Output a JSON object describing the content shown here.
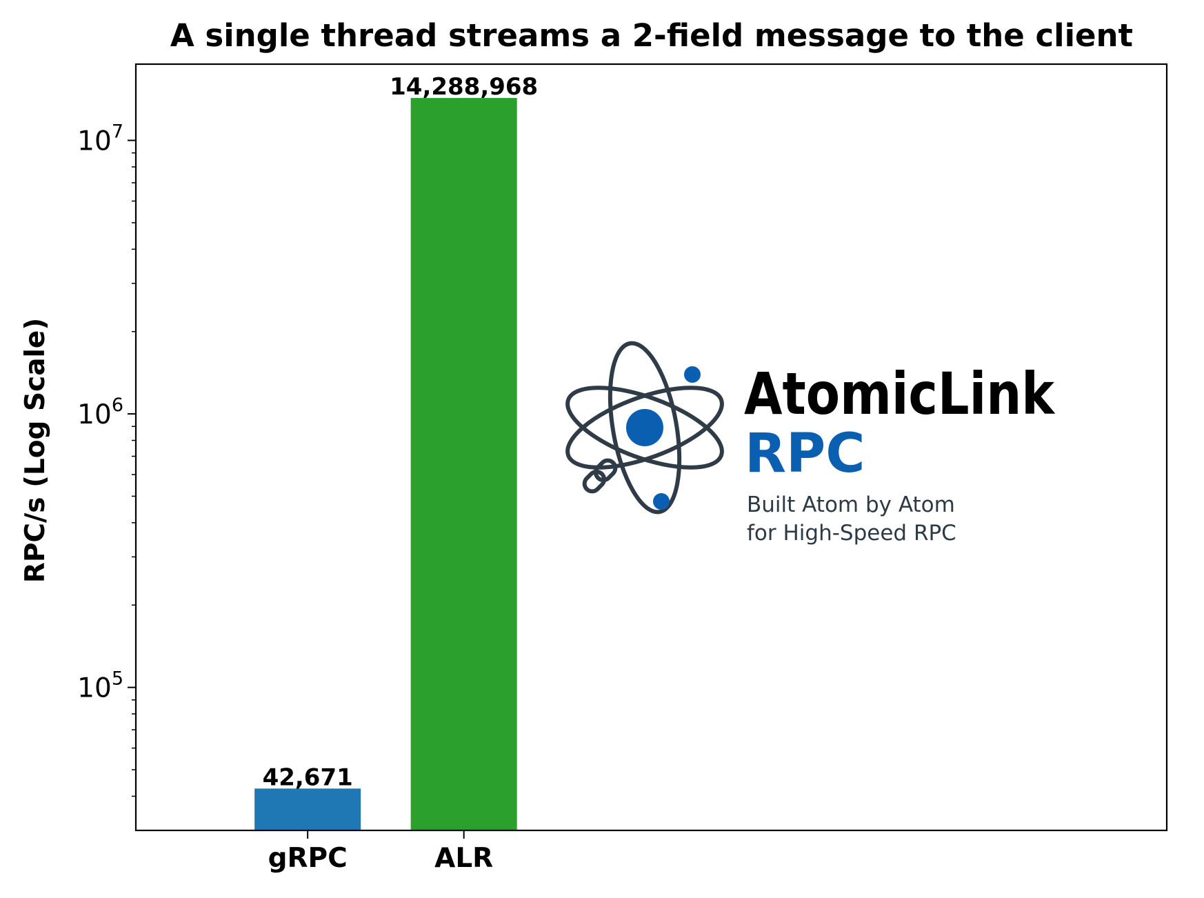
{
  "chart_data": {
    "type": "bar",
    "title": "A single thread streams a 2-field message to the client",
    "xlabel": "",
    "ylabel": "RPC/s (Log Scale)",
    "yscale": "log",
    "ylim": [
      30000,
      19000000
    ],
    "xlim": [
      -1.1,
      5.5
    ],
    "yticks": [
      {
        "value": 100000,
        "base": "10",
        "exp": "5"
      },
      {
        "value": 1000000,
        "base": "10",
        "exp": "6"
      },
      {
        "value": 10000000,
        "base": "10",
        "exp": "7"
      }
    ],
    "categories": [
      "gRPC",
      "ALR"
    ],
    "values": [
      42671,
      14288968
    ],
    "value_labels": [
      "42,671",
      "14,288,968"
    ],
    "colors": [
      "#1f77b4",
      "#2ca02c"
    ],
    "grid": false
  },
  "logo": {
    "name": "AtomicLink",
    "product": "RPC",
    "tagline_line1": "Built Atom by Atom",
    "tagline_line2": "for High-Speed RPC",
    "accent_color": "#0b5fb0",
    "orbit_color": "#2f3c47",
    "icons": [
      "atom-icon",
      "chain-link-icon"
    ]
  }
}
